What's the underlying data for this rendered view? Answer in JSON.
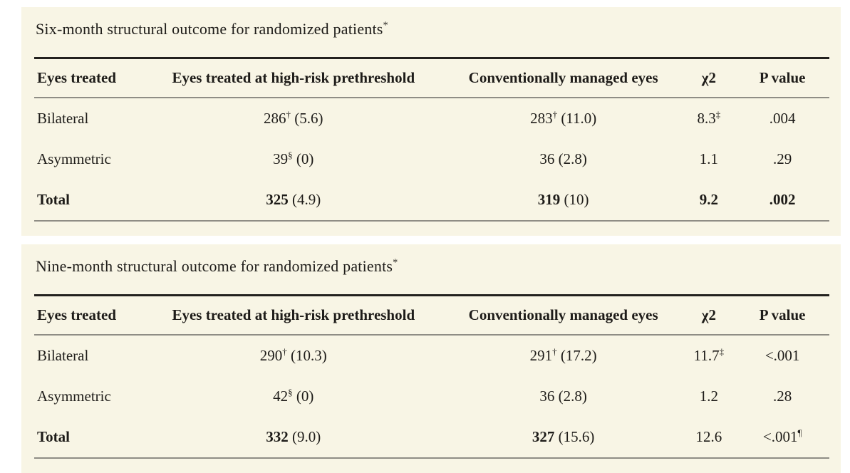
{
  "page": {
    "background_color": "#ffffff",
    "panel_background_color": "#f8f5e5",
    "text_color": "#1e1c19",
    "heavy_rule_color": "#23211e",
    "light_rule_color": "#8f8d85"
  },
  "tables": [
    {
      "title": "Six-month structural outcome for randomized patients",
      "title_superscript": "*",
      "columns": [
        "Eyes treated",
        "Eyes treated at high-risk prethreshold",
        "Conventionally managed eyes",
        "χ2",
        "P value"
      ],
      "rows": [
        {
          "cells": [
            [
              {
                "t": "Bilateral"
              }
            ],
            [
              {
                "t": "286"
              },
              {
                "t": "†",
                "sup": true
              },
              {
                "t": " (5.6)"
              }
            ],
            [
              {
                "t": "283"
              },
              {
                "t": "†",
                "sup": true
              },
              {
                "t": " (11.0)"
              }
            ],
            [
              {
                "t": "8.3"
              },
              {
                "t": "‡",
                "sup": true
              }
            ],
            [
              {
                "t": ".004"
              }
            ]
          ]
        },
        {
          "cells": [
            [
              {
                "t": "Asymmetric"
              }
            ],
            [
              {
                "t": "39"
              },
              {
                "t": "§",
                "sup": true
              },
              {
                "t": " (0)"
              }
            ],
            [
              {
                "t": "36 (2.8)"
              }
            ],
            [
              {
                "t": "1.1"
              }
            ],
            [
              {
                "t": ".29"
              }
            ]
          ]
        },
        {
          "cells": [
            [
              {
                "t": "Total",
                "b": true
              }
            ],
            [
              {
                "t": "325",
                "b": true
              },
              {
                "t": " (4.9)"
              }
            ],
            [
              {
                "t": "319",
                "b": true
              },
              {
                "t": " (10)"
              }
            ],
            [
              {
                "t": "9.2",
                "b": true
              }
            ],
            [
              {
                "t": ".002",
                "b": true
              }
            ]
          ]
        }
      ]
    },
    {
      "title": "Nine-month structural outcome for randomized patients",
      "title_superscript": "*",
      "columns": [
        "Eyes treated",
        "Eyes treated at high-risk prethreshold",
        "Conventionally managed eyes",
        "χ2",
        "P value"
      ],
      "rows": [
        {
          "cells": [
            [
              {
                "t": "Bilateral"
              }
            ],
            [
              {
                "t": "290"
              },
              {
                "t": "†",
                "sup": true
              },
              {
                "t": " (10.3)"
              }
            ],
            [
              {
                "t": "291"
              },
              {
                "t": "†",
                "sup": true
              },
              {
                "t": " (17.2)"
              }
            ],
            [
              {
                "t": "11.7"
              },
              {
                "t": "‡",
                "sup": true
              }
            ],
            [
              {
                "t": "<.001"
              }
            ]
          ]
        },
        {
          "cells": [
            [
              {
                "t": "Asymmetric"
              }
            ],
            [
              {
                "t": "42"
              },
              {
                "t": "§",
                "sup": true
              },
              {
                "t": " (0)"
              }
            ],
            [
              {
                "t": "36 (2.8)"
              }
            ],
            [
              {
                "t": "1.2"
              }
            ],
            [
              {
                "t": ".28"
              }
            ]
          ]
        },
        {
          "cells": [
            [
              {
                "t": "Total",
                "b": true
              }
            ],
            [
              {
                "t": "332",
                "b": true
              },
              {
                "t": " (9.0)"
              }
            ],
            [
              {
                "t": "327",
                "b": true
              },
              {
                "t": " (15.6)"
              }
            ],
            [
              {
                "t": "12.6"
              }
            ],
            [
              {
                "t": "<.001"
              },
              {
                "t": "¶",
                "sup": true
              }
            ]
          ]
        }
      ]
    }
  ]
}
